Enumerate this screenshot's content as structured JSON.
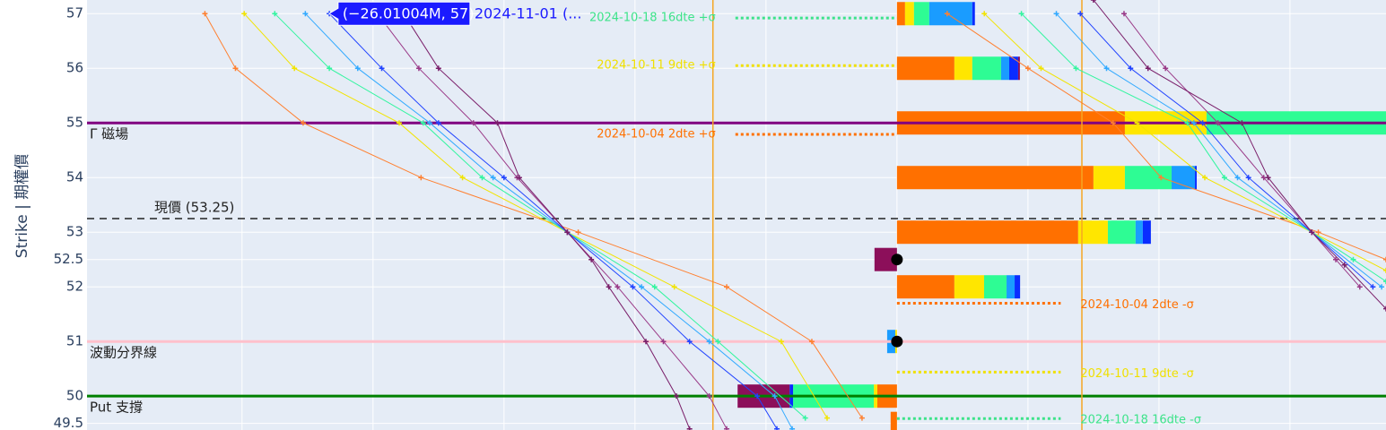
{
  "chart_data": {
    "type": "bar",
    "orientation": "h",
    "y_title": "Strike  |  期權價",
    "strikes": [
      49.5,
      50,
      51,
      52,
      52.5,
      53,
      54,
      55,
      56,
      57
    ],
    "series": [
      {
        "color": "#ff7000",
        "values": [
          -0.29,
          -0.9,
          0,
          2.63,
          0,
          8.3,
          9.0,
          10.44,
          2.63,
          0.37
        ]
      },
      {
        "color": "#ffe600",
        "values": [
          0,
          -0.16,
          -0.08,
          1.36,
          0,
          1.36,
          1.44,
          3.74,
          0.82,
          0.41
        ]
      },
      {
        "color": "#2efc94",
        "values": [
          0,
          -3.7,
          0,
          1.03,
          0,
          1.27,
          2.14,
          9.0,
          1.32,
          0.7
        ]
      },
      {
        "color": "#1a9cff",
        "values": [
          0,
          0,
          -0.37,
          0.37,
          0,
          0.33,
          1.07,
          0,
          0.37,
          1.97
        ]
      },
      {
        "color": "#0a2cff",
        "values": [
          0,
          -0.16,
          0,
          0.25,
          0,
          0.37,
          0.08,
          0,
          0.41,
          0.12
        ]
      },
      {
        "color": "#8c0f5a",
        "values": [
          0,
          -2.38,
          0,
          0,
          -1.03,
          0,
          0,
          0,
          0.08,
          0
        ]
      }
    ],
    "curves": [
      {
        "color": "#ff8030",
        "x": [
          -31.7,
          -30.3,
          -27.2,
          -21.8,
          -14.6,
          -7.8,
          -3.9,
          -1.6
        ],
        "y": [
          57,
          56,
          55,
          54,
          53,
          52,
          51,
          49.6
        ]
      },
      {
        "color": "#f2e400",
        "x": [
          -29.9,
          -27.6,
          -22.8,
          -19.9,
          -15.1,
          -10.2,
          -5.3,
          -3.2
        ],
        "y": [
          57,
          56,
          55,
          54,
          53,
          52,
          51,
          49.6
        ]
      },
      {
        "color": "#33f5a0",
        "x": [
          -28.5,
          -26.0,
          -21.7,
          -19.0,
          -15.1,
          -11.1,
          -8.2,
          -4.2
        ],
        "y": [
          57,
          56,
          55,
          54,
          53,
          52,
          51,
          49.6
        ]
      },
      {
        "color": "#33aaff",
        "x": [
          -27.1,
          -24.7,
          -21.4,
          -18.5,
          -15.1,
          -11.7,
          -8.6,
          -5.6,
          -4.8
        ],
        "y": [
          57,
          56,
          55,
          54,
          53,
          52,
          51,
          50,
          49.4
        ]
      },
      {
        "color": "#2244ff",
        "x": [
          -26.0,
          -23.6,
          -21.0,
          -18.0,
          -15.1,
          -12.1,
          -9.5,
          -6.4,
          -5.5
        ],
        "y": [
          57,
          56,
          55,
          54,
          53,
          52,
          51,
          50,
          49.4
        ]
      },
      {
        "color": "#9a3a88",
        "x": [
          -23.8,
          -21.9,
          -19.4,
          -17.4,
          -15.1,
          -12.8,
          -10.7,
          -8.6,
          -7.8
        ],
        "y": [
          57,
          56,
          55,
          54,
          53,
          52,
          51,
          50,
          49.4
        ]
      },
      {
        "color": "#7a1f6a",
        "x": [
          -22.6,
          -21.0,
          -18.3,
          -17.3,
          -15.1,
          -14.0,
          -13.2,
          -11.5,
          -10.1,
          -9.5
        ],
        "y": [
          57,
          56,
          55,
          54,
          53,
          52.5,
          52,
          51,
          50,
          49.4
        ]
      },
      {
        "color": "#ff8030",
        "x": [
          2.3,
          6.0,
          9.9,
          12.1,
          19.3,
          22.4
        ],
        "y": [
          57,
          56,
          55,
          54,
          53,
          52.5
        ]
      },
      {
        "color": "#f2e400",
        "x": [
          4.0,
          6.6,
          11.0,
          14.1,
          19.0,
          22.4
        ],
        "y": [
          57,
          56,
          55,
          54,
          53,
          52.3
        ]
      },
      {
        "color": "#33f5a0",
        "x": [
          5.7,
          8.2,
          13.3,
          15.0,
          19.0,
          20.9,
          22.4
        ],
        "y": [
          57,
          56,
          55,
          54,
          53,
          52.5,
          52.1
        ]
      },
      {
        "color": "#33aaff",
        "x": [
          7.3,
          9.6,
          13.6,
          15.6,
          19.0,
          22.2
        ],
        "y": [
          57,
          56,
          55,
          54,
          53,
          52
        ]
      },
      {
        "color": "#2244ff",
        "x": [
          8.4,
          10.7,
          14.0,
          16.1,
          19.0,
          21.8
        ],
        "y": [
          57,
          56,
          55,
          54,
          53,
          52
        ]
      },
      {
        "color": "#9a3a88",
        "x": [
          10.4,
          12.3,
          14.7,
          16.8,
          19.0,
          20.1,
          21.2
        ],
        "y": [
          57,
          56,
          55,
          54,
          53,
          52.5,
          52
        ]
      },
      {
        "color": "#7a1f6a",
        "x": [
          9.0,
          11.5,
          15.8,
          17.0,
          19.0,
          20.5,
          22.4
        ],
        "y": [
          57.25,
          56,
          55,
          54,
          53,
          52.4,
          51.6
        ]
      }
    ],
    "hlines": [
      {
        "y": 55,
        "color": "#800080",
        "label": "Γ 磁場"
      },
      {
        "y": 51,
        "color": "#ffc0cb",
        "label": "波動分界線"
      },
      {
        "y": 50,
        "color": "#008000",
        "label": "Put 支撐"
      },
      {
        "y": 53.25,
        "color": "#222222",
        "dash": true,
        "label": "現價 (53.25)"
      }
    ],
    "vlines": [
      {
        "x": -8.43,
        "color": "#f5a623"
      },
      {
        "x": 8.47,
        "color": "#f5a623"
      }
    ],
    "sigma_lines": [
      {
        "text": "2024-10-18 16dte +σ",
        "color": "#3de38a",
        "y": 56.92,
        "x0": -7.4,
        "x1": 0
      },
      {
        "text": "2024-10-11 9dte +σ",
        "color": "#f0e000",
        "y": 56.05,
        "x0": -7.4,
        "x1": 0
      },
      {
        "text": "2024-10-04 2dte +σ",
        "color": "#ff7000",
        "y": 54.79,
        "x0": -7.4,
        "x1": 0
      },
      {
        "text": "2024-10-04 2dte -σ",
        "color": "#ff7000",
        "y": 51.7,
        "x0": 0,
        "x1": 7.5
      },
      {
        "text": "2024-10-11 9dte -σ",
        "color": "#f0e000",
        "y": 50.44,
        "x0": 0,
        "x1": 7.5
      },
      {
        "text": "2024-10-18 16dte -σ",
        "color": "#3de38a",
        "y": 49.59,
        "x0": 0,
        "x1": 7.5
      }
    ],
    "points": {
      "x": [
        0,
        0
      ],
      "y": [
        52.5,
        51
      ],
      "color": "#000000"
    },
    "hover": {
      "text": "(−26.01004M, 57)",
      "name": "2024-11-01 (...",
      "x": -26.01004,
      "y": 57,
      "color": "#1a1aff"
    },
    "xlim": [
      -37.1,
      22.4
    ],
    "ylim": [
      49.38,
      57.25
    ],
    "xticks": [
      -30,
      -24,
      -18,
      -12,
      -6,
      0,
      6,
      12,
      18
    ],
    "yticks": [
      49.5,
      50,
      51,
      52,
      52.5,
      53,
      54,
      55,
      56,
      57
    ],
    "grid": true
  }
}
